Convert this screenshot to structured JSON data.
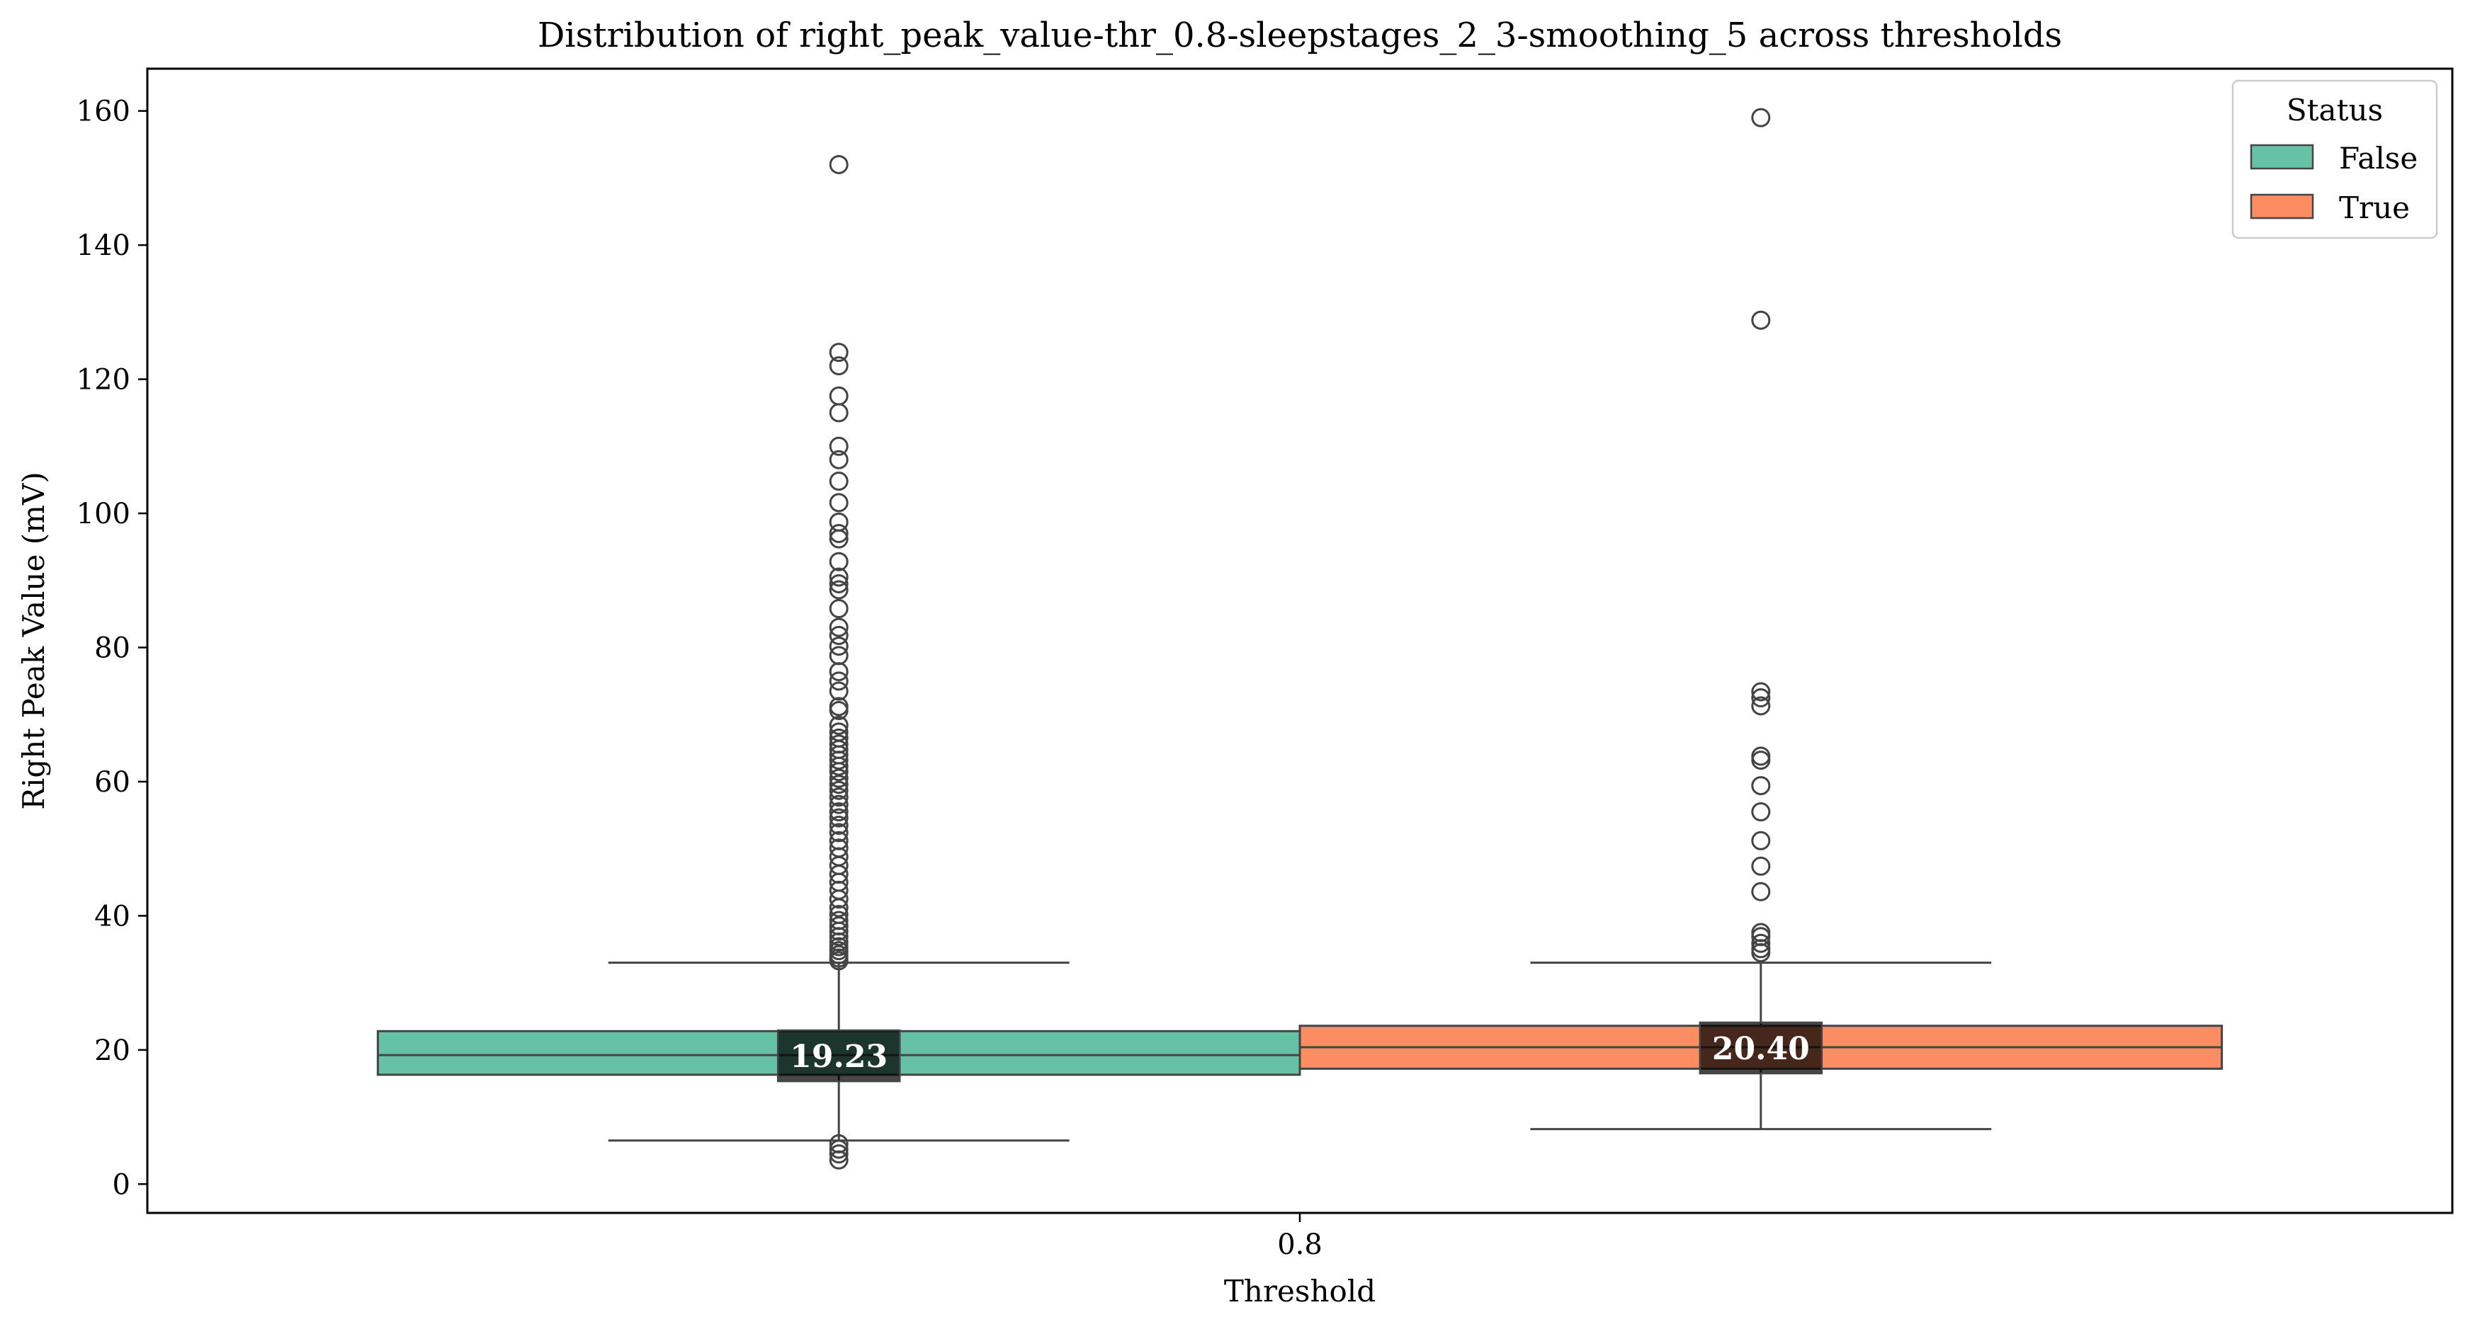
{
  "chart_data": {
    "type": "box",
    "title": "Distribution of right_peak_value-thr_0.8-sleepstages_2_3-smoothing_5 across thresholds",
    "xlabel": "Threshold",
    "ylabel": "Right Peak Value (mV)",
    "categories": [
      "0.8"
    ],
    "ylim": [
      -4.3,
      166.3
    ],
    "yticks": [
      0,
      20,
      40,
      60,
      80,
      100,
      120,
      140,
      160
    ],
    "legend": {
      "title": "Status",
      "position": "top-right"
    },
    "series": [
      {
        "name": "False",
        "color": "#66c2a5",
        "q1": 16.3,
        "median": 19.23,
        "q3": 22.8,
        "whisker_low": 6.5,
        "whisker_high": 33.0,
        "median_label": "19.23",
        "outliers": [
          152.0,
          124.0,
          122.0,
          117.5,
          115.0,
          110.0,
          108.0,
          104.8,
          101.6,
          98.7,
          97.0,
          96.2,
          92.8,
          90.5,
          89.5,
          88.6,
          85.8,
          83.0,
          81.8,
          80.2,
          78.8,
          76.4,
          75.0,
          73.5,
          71.2,
          70.6,
          68.4,
          67.4,
          66.5,
          65.6,
          64.8,
          64.0,
          63.2,
          62.3,
          61.5,
          60.5,
          59.6,
          58.7,
          57.7,
          56.6,
          55.5,
          54.6,
          53.5,
          52.4,
          51.2,
          50.1,
          48.8,
          47.5,
          46.2,
          45.0,
          43.8,
          42.5,
          41.2,
          40.2,
          39.3,
          38.5,
          37.7,
          36.9,
          36.1,
          35.4,
          34.8,
          34.2,
          33.7,
          33.3,
          6.0,
          5.2,
          4.5,
          3.6
        ]
      },
      {
        "name": "True",
        "color": "#fc8d62",
        "q1": 17.2,
        "median": 20.4,
        "q3": 23.6,
        "whisker_low": 8.2,
        "whisker_high": 33.0,
        "median_label": "20.40",
        "outliers": [
          159.0,
          128.8,
          73.4,
          72.5,
          71.3,
          63.8,
          63.2,
          59.4,
          55.5,
          51.2,
          47.4,
          43.6,
          37.5,
          36.9,
          35.9,
          35.1,
          34.5
        ]
      }
    ]
  }
}
